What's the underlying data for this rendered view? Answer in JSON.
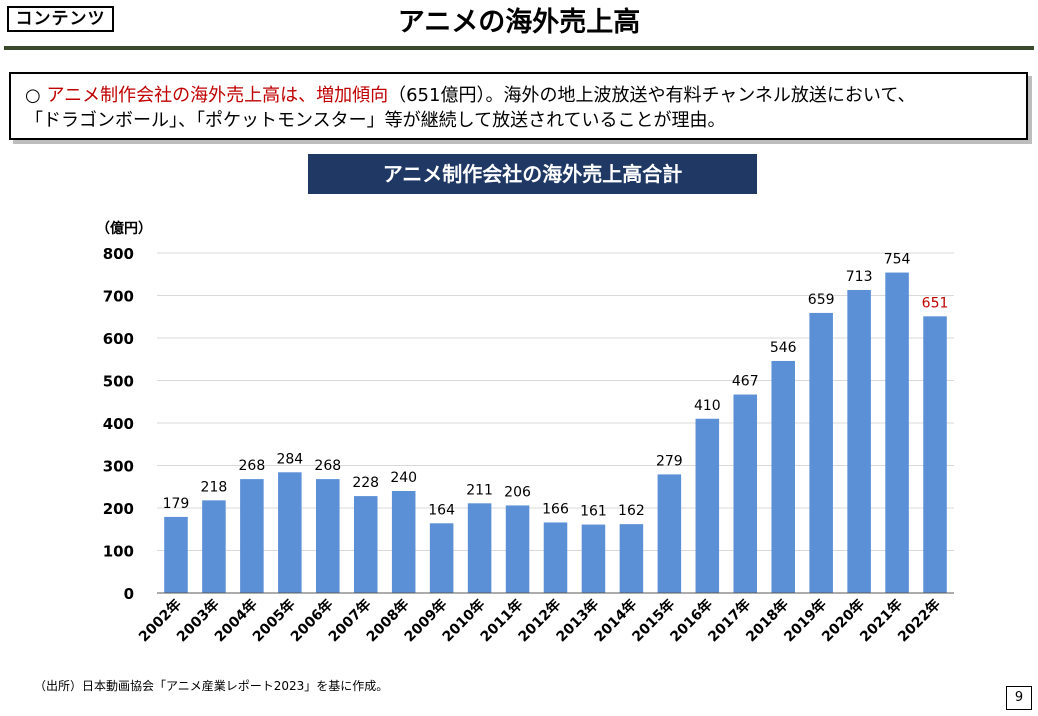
{
  "header": {
    "tag": "コンテンツ",
    "title": "アニメの海外売上高"
  },
  "summary": {
    "bullet": "○",
    "highlight": "アニメ制作会社の海外売上高は、増加傾向",
    "rest_line1": "（651億円）。海外の地上波放送や有料チャンネル放送において、",
    "line2": "「ドラゴンボール」、「ポケットモンスター」等が継続して放送されていることが理由。"
  },
  "chart_data": {
    "type": "bar",
    "title": "アニメ制作会社の海外売上高合計",
    "ylabel": "（億円）",
    "xlabel": "",
    "ylim": [
      0,
      800
    ],
    "yticks": [
      0,
      100,
      200,
      300,
      400,
      500,
      600,
      700,
      800
    ],
    "grid": true,
    "categories": [
      "2002年",
      "2003年",
      "2004年",
      "2005年",
      "2006年",
      "2007年",
      "2008年",
      "2009年",
      "2010年",
      "2011年",
      "2012年",
      "2013年",
      "2014年",
      "2015年",
      "2016年",
      "2017年",
      "2018年",
      "2019年",
      "2020年",
      "2021年",
      "2022年"
    ],
    "values": [
      179,
      218,
      268,
      284,
      268,
      228,
      240,
      164,
      211,
      206,
      166,
      161,
      162,
      279,
      410,
      467,
      546,
      659,
      713,
      754,
      651
    ],
    "bar_color": "#5b8fd6",
    "highlight_label_color": "#c00000",
    "highlight_index": 20
  },
  "footer": {
    "source": "（出所）日本動画協会「アニメ産業レポート2023」を基に作成。",
    "page_number": "9"
  }
}
